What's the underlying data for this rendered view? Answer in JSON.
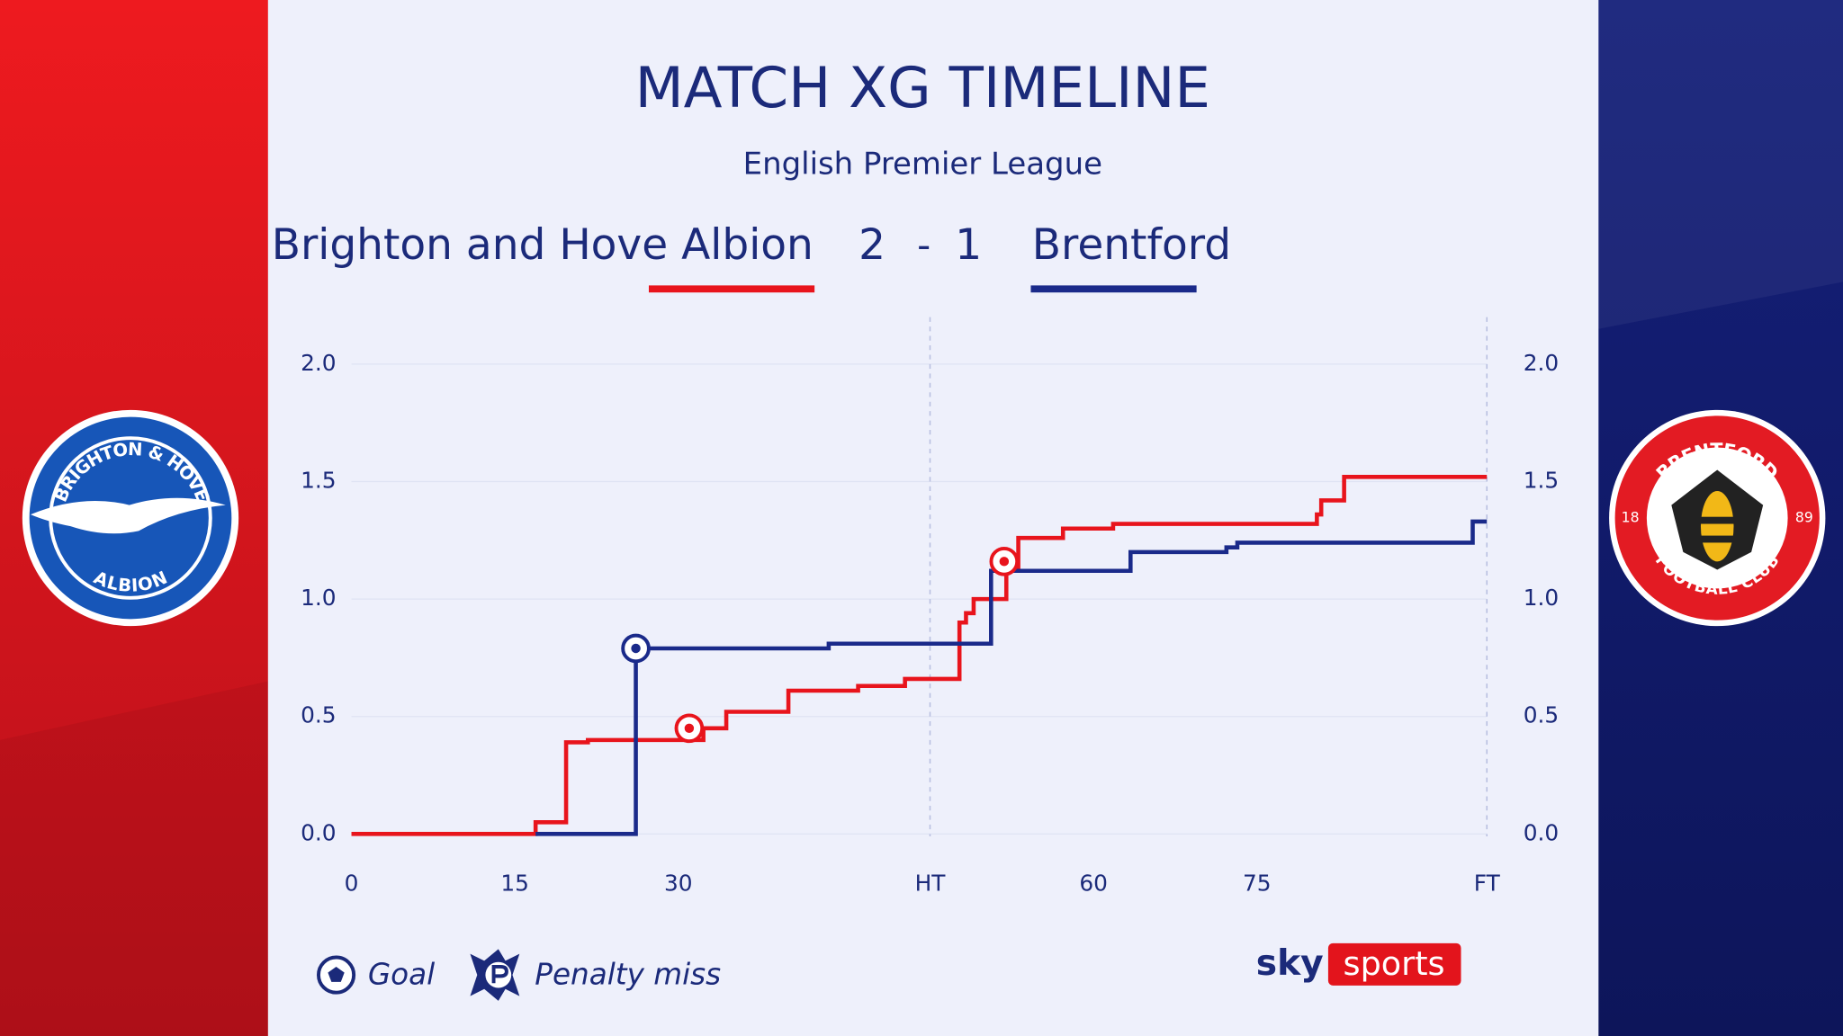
{
  "header": {
    "title": "MATCH XG TIMELINE",
    "subtitle": "English Premier League",
    "home_score": "2",
    "separator": "-",
    "away_score": "1"
  },
  "chart_data": {
    "type": "step",
    "xlim": [
      0,
      104.2
    ],
    "ylim": [
      0,
      2.2
    ],
    "xticks": [
      0,
      15,
      30,
      {
        "value": 53.1,
        "label": "HT"
      },
      {
        "value": 68.1,
        "label": "60"
      },
      {
        "value": 83.1,
        "label": "75"
      },
      {
        "value": 104.2,
        "label": "FT"
      }
    ],
    "yticks": [
      {
        "value": 0,
        "label": "0.0"
      },
      0.5,
      {
        "value": 1,
        "label": "1.0"
      },
      1.5,
      {
        "value": 2,
        "label": "2.0"
      }
    ],
    "grid": true,
    "series": [
      {
        "name": "Brighton and Hove Albion",
        "color": "#e8141c",
        "x": [
          0,
          16.9,
          19.7,
          21.7,
          32.3,
          34.4,
          40.1,
          46.5,
          50.8,
          55.8,
          56.4,
          57.1,
          60.1,
          61.2,
          65.3,
          69.9,
          88.6,
          89.0,
          91.1,
          104.2
        ],
        "values": [
          0,
          0.05,
          0.39,
          0.4,
          0.45,
          0.52,
          0.61,
          0.63,
          0.66,
          0.9,
          0.94,
          1.0,
          1.13,
          1.26,
          1.3,
          1.32,
          1.36,
          1.42,
          1.52,
          1.52
        ],
        "goals": {
          "x": [
            31.0,
            59.9
          ],
          "y": [
            0.45,
            1.16
          ]
        }
      },
      {
        "name": "Brentford",
        "color": "#1a2a8a",
        "x": [
          16.9,
          26.1,
          43.8,
          58.7,
          71.5,
          80.3,
          81.3,
          102.9,
          104.2
        ],
        "values": [
          0,
          0.79,
          0.81,
          1.12,
          1.2,
          1.22,
          1.24,
          1.33,
          1.33
        ],
        "goals": {
          "x": [
            26.1
          ],
          "y": [
            0.79
          ]
        }
      }
    ],
    "legend": [
      "Goal",
      "Penalty miss"
    ]
  },
  "badges": {
    "home_top": "BRIGHTON & HOVE",
    "home_bottom": "ALBION",
    "away_top": "BRENTFORD",
    "away_bottom": "FOOTBALL CLUB",
    "away_left": "18",
    "away_right": "89"
  },
  "branding": {
    "left": "sky",
    "right": "sports"
  }
}
